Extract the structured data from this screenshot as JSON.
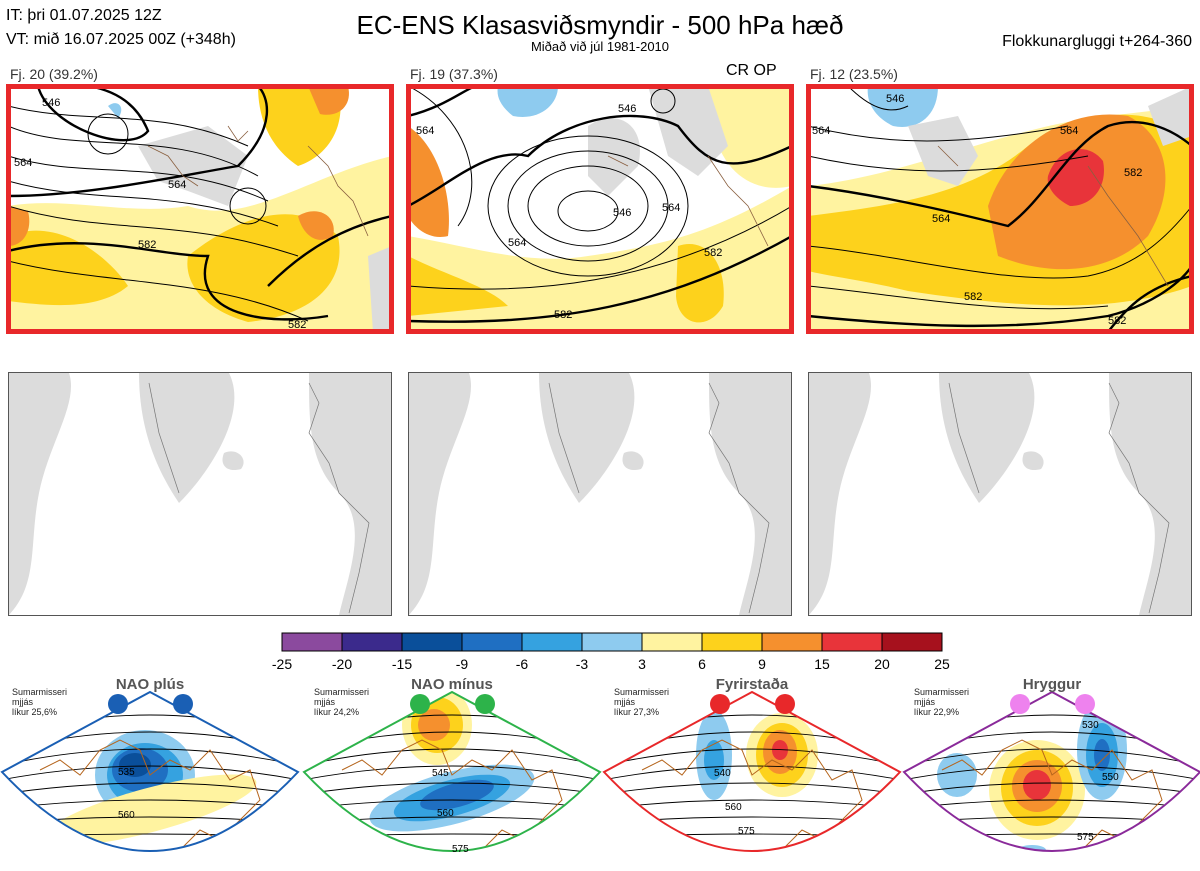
{
  "header": {
    "it_line": "IT: þri 01.07.2025 12Z",
    "vt_line": "VT: mið 16.07.2025 00Z  (+348h)",
    "title": "EC-ENS Klasasviðsmyndir - 500 hPa hæð",
    "subtitle": "Miðað við júl 1981-2010",
    "window": "Flokkunargluggi t+264-360"
  },
  "panels": [
    {
      "label": "Fj. 20 (39.2%)",
      "note": ""
    },
    {
      "label": "Fj. 19 (37.3%)",
      "note": "CR OP"
    },
    {
      "label": "Fj. 12 (23.5%)",
      "note": ""
    }
  ],
  "contour_labels": {
    "p1": [
      "546",
      "564",
      "564",
      "582",
      "582"
    ],
    "p2": [
      "564",
      "546",
      "564",
      "546",
      "564",
      "582",
      "582"
    ],
    "p3": [
      "546",
      "564",
      "564",
      "564",
      "582",
      "582",
      "582"
    ]
  },
  "regimes": [
    {
      "name": "NAO plús",
      "note": "Sumarmisseri\nmjjás\nlíkur 25,6%",
      "labels": [
        "535",
        "560"
      ],
      "dot_color": "#1a5fb4",
      "frame_color": "#1a5fb4"
    },
    {
      "name": "NAO mínus",
      "note": "Sumarmisseri\nmjjás\nlíkur 24,2%",
      "labels": [
        "545",
        "560",
        "575"
      ],
      "dot_color": "#2db34a",
      "frame_color": "#2db34a"
    },
    {
      "name": "Fyrirstaða",
      "note": "Sumarmisseri\nmjjás\nlíkur 27,3%",
      "labels": [
        "540",
        "560",
        "575"
      ],
      "dot_color": "#e8282a",
      "frame_color": "#e8282a"
    },
    {
      "name": "Hryggur",
      "note": "Sumarmisseri\nmjjás\nlíkur 22,9%",
      "labels": [
        "530",
        "550",
        "575"
      ],
      "dot_color": "#ee82ee",
      "frame_color": "#8a2a9a"
    }
  ],
  "chart_data": {
    "type": "heatmap",
    "title": "EC-ENS Klasasviðsmyndir - 500 hPa hæð",
    "subtitle": "Miðað við júl 1981-2010",
    "colorbar": {
      "ticks": [
        "-25",
        "-20",
        "-15",
        "-9",
        "-6",
        "-3",
        "3",
        "6",
        "9",
        "15",
        "20",
        "25"
      ],
      "colors": [
        "#8b4a9e",
        "#3b2a8c",
        "#0a4f9a",
        "#1f6fc2",
        "#35a2e0",
        "#8ecbef",
        "#ffffff",
        "#fff3a0",
        "#fdd21c",
        "#f5902e",
        "#e8343a",
        "#a6111d"
      ]
    },
    "clusters": [
      {
        "name": "Fj. 20",
        "probability_percent": 39.2
      },
      {
        "name": "Fj. 19",
        "probability_percent": 37.3,
        "contains": "CR OP"
      },
      {
        "name": "Fj. 12",
        "probability_percent": 23.5
      }
    ],
    "regimes": [
      {
        "name": "NAO plús",
        "probability_percent": 25.6
      },
      {
        "name": "NAO mínus",
        "probability_percent": 24.2
      },
      {
        "name": "Fyrirstaða",
        "probability_percent": 27.3
      },
      {
        "name": "Hryggur",
        "probability_percent": 22.9
      }
    ]
  }
}
